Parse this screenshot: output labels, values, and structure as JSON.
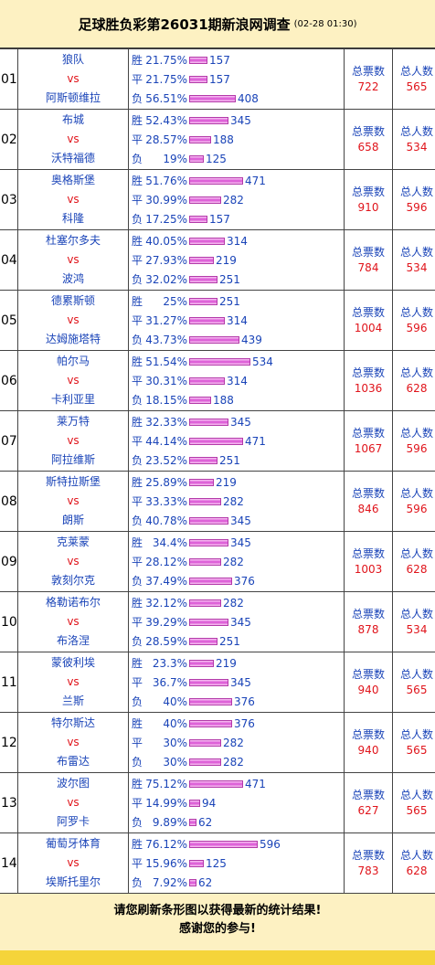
{
  "header": {
    "title": "足球胜负彩第26031期新浪网调查",
    "time": "(02-28 01:30)"
  },
  "labels": {
    "win": "胜",
    "draw": "平",
    "lose": "负",
    "vs": "vs",
    "total_votes": "总票数",
    "total_people": "总人数"
  },
  "matches": [
    {
      "no": "01",
      "home": "狼队",
      "away": "阿斯顿维拉",
      "win_pct": "21.75%",
      "win_cnt": 157,
      "draw_pct": "21.75%",
      "draw_cnt": 157,
      "lose_pct": "56.51%",
      "lose_cnt": 408,
      "votes": 722,
      "people": 565
    },
    {
      "no": "02",
      "home": "布城",
      "away": "沃特福德",
      "win_pct": "52.43%",
      "win_cnt": 345,
      "draw_pct": "28.57%",
      "draw_cnt": 188,
      "lose_pct": "19%",
      "lose_cnt": 125,
      "votes": 658,
      "people": 534
    },
    {
      "no": "03",
      "home": "奥格斯堡",
      "away": "科隆",
      "win_pct": "51.76%",
      "win_cnt": 471,
      "draw_pct": "30.99%",
      "draw_cnt": 282,
      "lose_pct": "17.25%",
      "lose_cnt": 157,
      "votes": 910,
      "people": 596
    },
    {
      "no": "04",
      "home": "杜塞尔多夫",
      "away": "波鸿",
      "win_pct": "40.05%",
      "win_cnt": 314,
      "draw_pct": "27.93%",
      "draw_cnt": 219,
      "lose_pct": "32.02%",
      "lose_cnt": 251,
      "votes": 784,
      "people": 534
    },
    {
      "no": "05",
      "home": "德累斯顿",
      "away": "达姆施塔特",
      "win_pct": "25%",
      "win_cnt": 251,
      "draw_pct": "31.27%",
      "draw_cnt": 314,
      "lose_pct": "43.73%",
      "lose_cnt": 439,
      "votes": 1004,
      "people": 596
    },
    {
      "no": "06",
      "home": "帕尔马",
      "away": "卡利亚里",
      "win_pct": "51.54%",
      "win_cnt": 534,
      "draw_pct": "30.31%",
      "draw_cnt": 314,
      "lose_pct": "18.15%",
      "lose_cnt": 188,
      "votes": 1036,
      "people": 628
    },
    {
      "no": "07",
      "home": "莱万特",
      "away": "阿拉维斯",
      "win_pct": "32.33%",
      "win_cnt": 345,
      "draw_pct": "44.14%",
      "draw_cnt": 471,
      "lose_pct": "23.52%",
      "lose_cnt": 251,
      "votes": 1067,
      "people": 596
    },
    {
      "no": "08",
      "home": "斯特拉斯堡",
      "away": "朗斯",
      "win_pct": "25.89%",
      "win_cnt": 219,
      "draw_pct": "33.33%",
      "draw_cnt": 282,
      "lose_pct": "40.78%",
      "lose_cnt": 345,
      "votes": 846,
      "people": 596
    },
    {
      "no": "09",
      "home": "克莱蒙",
      "away": "敦刻尔克",
      "win_pct": "34.4%",
      "win_cnt": 345,
      "draw_pct": "28.12%",
      "draw_cnt": 282,
      "lose_pct": "37.49%",
      "lose_cnt": 376,
      "votes": 1003,
      "people": 628
    },
    {
      "no": "10",
      "home": "格勒诺布尔",
      "away": "布洛涅",
      "win_pct": "32.12%",
      "win_cnt": 282,
      "draw_pct": "39.29%",
      "draw_cnt": 345,
      "lose_pct": "28.59%",
      "lose_cnt": 251,
      "votes": 878,
      "people": 534
    },
    {
      "no": "11",
      "home": "蒙彼利埃",
      "away": "兰斯",
      "win_pct": "23.3%",
      "win_cnt": 219,
      "draw_pct": "36.7%",
      "draw_cnt": 345,
      "lose_pct": "40%",
      "lose_cnt": 376,
      "votes": 940,
      "people": 565
    },
    {
      "no": "12",
      "home": "特尔斯达",
      "away": "布雷达",
      "win_pct": "40%",
      "win_cnt": 376,
      "draw_pct": "30%",
      "draw_cnt": 282,
      "lose_pct": "30%",
      "lose_cnt": 282,
      "votes": 940,
      "people": 565
    },
    {
      "no": "13",
      "home": "波尔图",
      "away": "阿罗卡",
      "win_pct": "75.12%",
      "win_cnt": 471,
      "draw_pct": "14.99%",
      "draw_cnt": 94,
      "lose_pct": "9.89%",
      "lose_cnt": 62,
      "votes": 627,
      "people": 565
    },
    {
      "no": "14",
      "home": "葡萄牙体育",
      "away": "埃斯托里尔",
      "win_pct": "76.12%",
      "win_cnt": 596,
      "draw_pct": "15.96%",
      "draw_cnt": 125,
      "lose_pct": "7.92%",
      "lose_cnt": 62,
      "votes": 783,
      "people": 628
    }
  ],
  "footer": {
    "line1": "请您刷新条形图以获得最新的统计结果!",
    "line2": "感谢您的参与!"
  },
  "colors": {
    "title_bg": "#fdf1c2",
    "team": "#1a44b8",
    "vs": "#e0141b",
    "bar": "#d94fd3",
    "bottom_strip": "#f5d43a"
  }
}
